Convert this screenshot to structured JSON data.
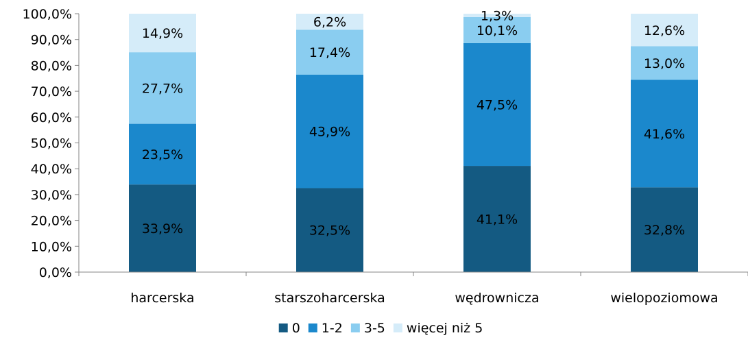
{
  "chart_data": {
    "type": "bar",
    "stacked": true,
    "title": "",
    "xlabel": "",
    "ylabel": "",
    "ylim": [
      0,
      100
    ],
    "y_ticks": [
      "0,0%",
      "10,0%",
      "20,0%",
      "30,0%",
      "40,0%",
      "50,0%",
      "60,0%",
      "70,0%",
      "80,0%",
      "90,0%",
      "100,0%"
    ],
    "categories": [
      "harcerska",
      "starszoharcerska",
      "wędrownicza",
      "wielopoziomowa"
    ],
    "series": [
      {
        "name": "0",
        "color": "#145A82",
        "values": [
          33.9,
          32.5,
          41.1,
          32.8
        ],
        "labels": [
          "33,9%",
          "32,5%",
          "41,1%",
          "32,8%"
        ]
      },
      {
        "name": "1-2",
        "color": "#1B88CC",
        "values": [
          23.5,
          43.9,
          47.5,
          41.6
        ],
        "labels": [
          "23,5%",
          "43,9%",
          "47,5%",
          "41,6%"
        ]
      },
      {
        "name": "3-5",
        "color": "#8ACDF0",
        "values": [
          27.7,
          17.4,
          10.1,
          13.0
        ],
        "labels": [
          "27,7%",
          "17,4%",
          "10,1%",
          "13,0%"
        ]
      },
      {
        "name": "więcej niż 5",
        "color": "#D5ECF9",
        "values": [
          14.9,
          6.2,
          1.3,
          12.6
        ],
        "labels": [
          "14,9%",
          "6,2%",
          "1,3%",
          "12,6%"
        ]
      }
    ],
    "legend_position": "bottom",
    "grid": false
  }
}
